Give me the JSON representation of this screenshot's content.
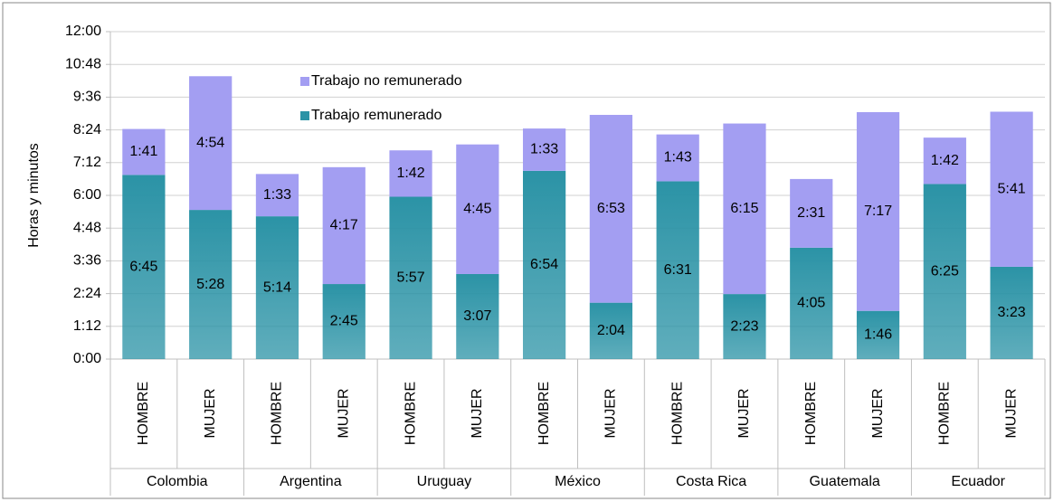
{
  "chart_data": {
    "type": "stacked_bar",
    "y_label": "Horas y minutos",
    "categories": [
      "HOMBRE",
      "MUJER",
      "HOMBRE",
      "MUJER",
      "HOMBRE",
      "MUJER",
      "HOMBRE",
      "MUJER",
      "HOMBRE",
      "MUJER",
      "HOMBRE",
      "MUJER",
      "HOMBRE",
      "MUJER"
    ],
    "groups": [
      "Colombia",
      "Argentina",
      "Uruguay",
      "México",
      "Costa Rica",
      "Guatemala",
      "Ecuador"
    ],
    "series": [
      {
        "name": "Trabajo remunerado",
        "color": "#2b93a6",
        "values": [
          6.75,
          5.46667,
          5.23333,
          2.75,
          5.95,
          3.11667,
          6.9,
          2.06667,
          6.51667,
          2.38333,
          4.08333,
          1.76667,
          6.41667,
          3.38333
        ],
        "value_labels": [
          "6:45",
          "5:28",
          "5:14",
          "2:45",
          "5:57",
          "3:07",
          "6:54",
          "2:04",
          "6:31",
          "2:23",
          "4:05",
          "1:46",
          "6:25",
          "3:23"
        ]
      },
      {
        "name": "Trabajo no remunerado",
        "color": "#a39ef2",
        "values": [
          1.68333,
          4.9,
          1.55,
          4.28333,
          1.7,
          4.75,
          1.55,
          6.88333,
          1.71667,
          6.25,
          2.51667,
          7.28333,
          1.7,
          5.68333
        ],
        "value_labels": [
          "1:41",
          "4:54",
          "1:33",
          "4:17",
          "1:42",
          "4:45",
          "1:33",
          "6:53",
          "1:43",
          "6:15",
          "2:31",
          "7:17",
          "1:42",
          "5:41"
        ]
      }
    ],
    "ylim": [
      0,
      12
    ],
    "yticks": [
      {
        "value": 0,
        "label": "0:00"
      },
      {
        "value": 1.2,
        "label": "1:12"
      },
      {
        "value": 2.4,
        "label": "2:24"
      },
      {
        "value": 3.6,
        "label": "3:36"
      },
      {
        "value": 4.8,
        "label": "4:48"
      },
      {
        "value": 6,
        "label": "6:00"
      },
      {
        "value": 7.2,
        "label": "7:12"
      },
      {
        "value": 8.4,
        "label": "8:24"
      },
      {
        "value": 9.6,
        "label": "9:36"
      },
      {
        "value": 10.8,
        "label": "10:48"
      },
      {
        "value": 12,
        "label": "12:00"
      }
    ],
    "grid": true,
    "legend_order": [
      1,
      0
    ]
  }
}
